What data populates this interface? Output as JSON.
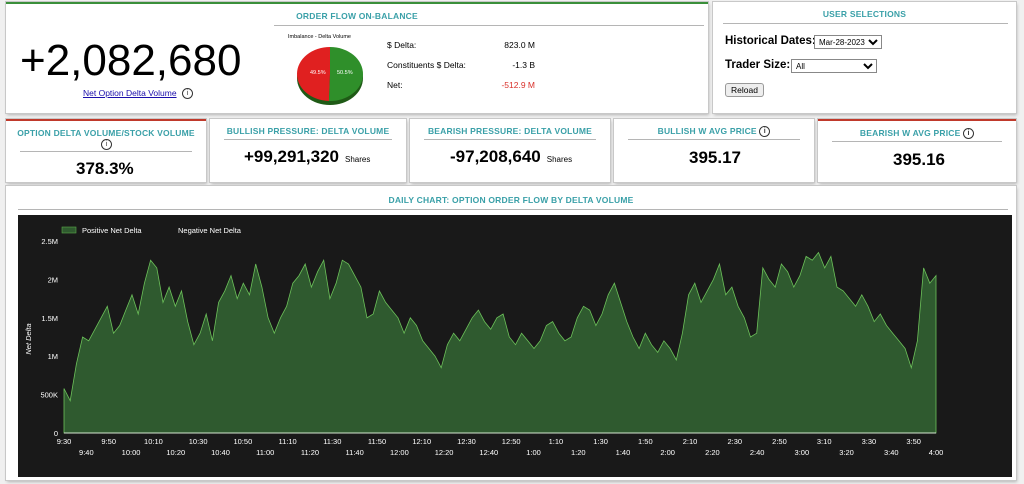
{
  "order_flow": {
    "title": "ORDER FLOW ON-BALANCE",
    "big_number": "+2,082,680",
    "net_option_label": "Net Option Delta Volume",
    "pie_title": "Imbalance - Delta Volume",
    "pie_red_label": "49.5%",
    "pie_green_label": "50.5%",
    "pie_red_pct": 49.5,
    "pie_green_pct": 50.5,
    "rows": [
      {
        "label": "$ Delta:",
        "value": "823.0 M"
      },
      {
        "label": "Constituents $ Delta:",
        "value": "-1.3 B"
      },
      {
        "label": "Net:",
        "value": "-512.9 M"
      }
    ],
    "net_color": "#d9302a"
  },
  "user_selections": {
    "title": "USER SELECTIONS",
    "historical_label": "Historical Dates:",
    "historical_value": "Mar-28-2023",
    "trader_label": "Trader Size:",
    "trader_value": "All",
    "reload_label": "Reload"
  },
  "metrics": [
    {
      "title": "OPTION DELTA VOLUME/STOCK VOLUME",
      "value": "378.3%"
    },
    {
      "title": "BULLISH PRESSURE: DELTA VOLUME",
      "value": "+99,291,320",
      "unit": "Shares"
    },
    {
      "title": "BEARISH PRESSURE: DELTA VOLUME",
      "value": "-97,208,640",
      "unit": "Shares"
    },
    {
      "title": "BULLISH W AVG PRICE",
      "value": "395.17"
    },
    {
      "title": "BEARISH W AVG PRICE",
      "value": "395.16"
    }
  ],
  "colors": {
    "accent_teal": "#3aa0a8",
    "green": "#3a8f3a",
    "red": "#c0392b",
    "chart_bg": "#191919",
    "area_fill": "#2f5a2f",
    "area_line": "#6cc15a"
  },
  "chart": {
    "title": "DAILY CHART: OPTION ORDER FLOW BY DELTA VOLUME",
    "legend_positive": "Positive Net Delta",
    "legend_negative": "Negative Net Delta",
    "ylabel": "Net Delta"
  },
  "chart_data": {
    "type": "area",
    "ylabel": "Net Delta",
    "ylim": [
      0,
      2500000
    ],
    "y_ticks": [
      "0",
      "500K",
      "1M",
      "1.5M",
      "2M",
      "2.5M"
    ],
    "x_ticks_top": [
      "9:30",
      "9:50",
      "10:10",
      "10:30",
      "10:50",
      "11:10",
      "11:30",
      "11:50",
      "12:10",
      "12:30",
      "12:50",
      "1:10",
      "1:30",
      "1:50",
      "2:10",
      "2:30",
      "2:50",
      "3:10",
      "3:30",
      "3:50"
    ],
    "x_ticks_bottom": [
      "9:40",
      "10:00",
      "10:20",
      "10:40",
      "11:00",
      "11:20",
      "11:40",
      "12:00",
      "12:20",
      "12:40",
      "1:00",
      "1:20",
      "1:40",
      "2:00",
      "2:20",
      "2:40",
      "3:00",
      "3:20",
      "3:40",
      "4:00"
    ],
    "series": [
      {
        "name": "Positive Net Delta",
        "x_start": "9:30",
        "x_end": "4:00",
        "values": [
          580000,
          420000,
          900000,
          1250000,
          1200000,
          1350000,
          1500000,
          1650000,
          1300000,
          1400000,
          1600000,
          1800000,
          1550000,
          1950000,
          2250000,
          2150000,
          1700000,
          1900000,
          1650000,
          1850000,
          1450000,
          1150000,
          1300000,
          1550000,
          1200000,
          1700000,
          1850000,
          2050000,
          1750000,
          1950000,
          1800000,
          2200000,
          1900000,
          1500000,
          1300000,
          1500000,
          1650000,
          1950000,
          2050000,
          2200000,
          1900000,
          2100000,
          2250000,
          1750000,
          1950000,
          2250000,
          2200000,
          2050000,
          1900000,
          1500000,
          1550000,
          1850000,
          1700000,
          1600000,
          1500000,
          1300000,
          1500000,
          1400000,
          1200000,
          1100000,
          1000000,
          850000,
          1150000,
          1300000,
          1200000,
          1350000,
          1500000,
          1600000,
          1450000,
          1350000,
          1500000,
          1550000,
          1250000,
          1150000,
          1300000,
          1200000,
          1100000,
          1200000,
          1400000,
          1450000,
          1300000,
          1200000,
          1250000,
          1500000,
          1650000,
          1600000,
          1400000,
          1550000,
          1800000,
          1950000,
          1700000,
          1450000,
          1250000,
          1100000,
          1300000,
          1150000,
          1050000,
          1200000,
          1100000,
          950000,
          1300000,
          1800000,
          1950000,
          1700000,
          1850000,
          2000000,
          2200000,
          1800000,
          1900000,
          1650000,
          1500000,
          1250000,
          1300000,
          2150000,
          2000000,
          1900000,
          2200000,
          2100000,
          1900000,
          2050000,
          2300000,
          2250000,
          2350000,
          2150000,
          2300000,
          1900000,
          1850000,
          1750000,
          1650000,
          1800000,
          1650000,
          1450000,
          1550000,
          1400000,
          1300000,
          1200000,
          1100000,
          850000,
          1200000,
          2150000,
          1950000,
          2050000
        ]
      }
    ]
  }
}
